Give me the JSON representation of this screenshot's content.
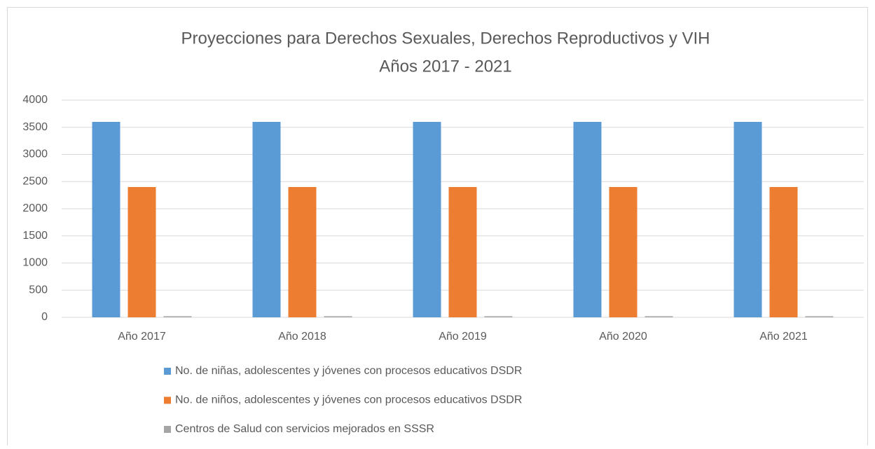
{
  "chart_data": {
    "type": "bar",
    "title": "Proyecciones para Derechos Sexuales, Derechos Reproductivos y VIH",
    "subtitle": "Años 2017 - 2021",
    "categories": [
      "Año 2017",
      "Año 2018",
      "Año 2019",
      "Año 2020",
      "Año 2021"
    ],
    "series": [
      {
        "name": "No. de niñas, adolescentes y jóvenes con procesos educativos DSDR",
        "color": "#5b9bd5",
        "values": [
          3600,
          3600,
          3600,
          3600,
          3600
        ]
      },
      {
        "name": "No. de niños, adolescentes y jóvenes con procesos educativos DSDR",
        "color": "#ed7d31",
        "values": [
          2400,
          2400,
          2400,
          2400,
          2400
        ]
      },
      {
        "name": "Centros de Salud con servicios mejorados en SSSR",
        "color": "#a5a5a5",
        "values": [
          20,
          20,
          20,
          20,
          20
        ]
      }
    ],
    "ylim": [
      0,
      4000
    ],
    "yticks": [
      0,
      500,
      1000,
      1500,
      2000,
      2500,
      3000,
      3500,
      4000
    ],
    "grid": true,
    "legend": "bottom"
  }
}
